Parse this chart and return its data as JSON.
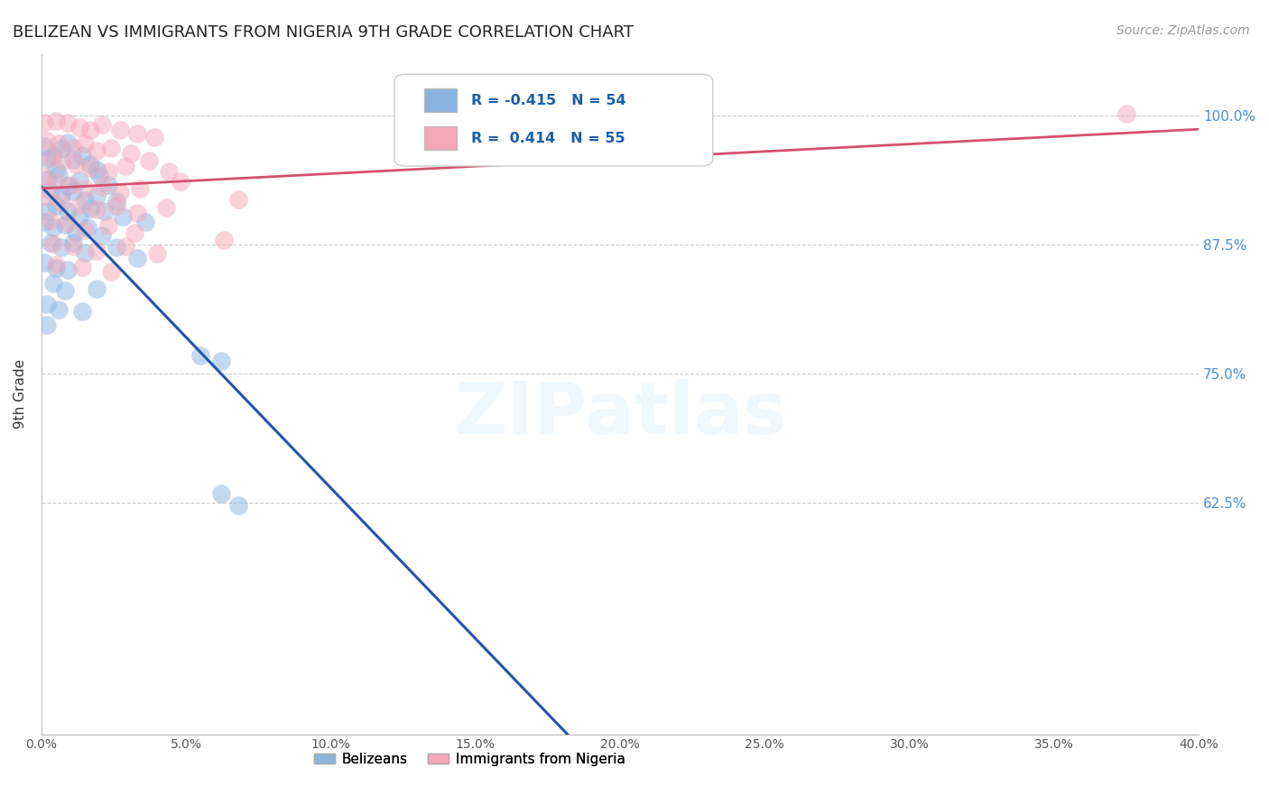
{
  "title": "BELIZEAN VS IMMIGRANTS FROM NIGERIA 9TH GRADE CORRELATION CHART",
  "source": "Source: ZipAtlas.com",
  "ylabel": "9th Grade",
  "ytick_labels": [
    "100.0%",
    "87.5%",
    "75.0%",
    "62.5%"
  ],
  "ytick_values": [
    1.0,
    0.875,
    0.75,
    0.625
  ],
  "xlim": [
    0.0,
    0.4
  ],
  "ylim": [
    0.4,
    1.06
  ],
  "blue_color": "#8ab4e0",
  "pink_color": "#f4a7b9",
  "blue_line_color": "#2255aa",
  "pink_line_color": "#d45070",
  "dashed_line_color": "#aac4dd",
  "watermark": "ZIPatlas",
  "belizean_points": [
    [
      0.001,
      0.97
    ],
    [
      0.004,
      0.962
    ],
    [
      0.007,
      0.968
    ],
    [
      0.009,
      0.974
    ],
    [
      0.002,
      0.958
    ],
    [
      0.005,
      0.948
    ],
    [
      0.011,
      0.957
    ],
    [
      0.014,
      0.962
    ],
    [
      0.017,
      0.953
    ],
    [
      0.019,
      0.948
    ],
    [
      0.002,
      0.938
    ],
    [
      0.006,
      0.943
    ],
    [
      0.009,
      0.932
    ],
    [
      0.013,
      0.937
    ],
    [
      0.02,
      0.942
    ],
    [
      0.023,
      0.933
    ],
    [
      0.003,
      0.927
    ],
    [
      0.007,
      0.923
    ],
    [
      0.011,
      0.927
    ],
    [
      0.015,
      0.918
    ],
    [
      0.019,
      0.922
    ],
    [
      0.026,
      0.917
    ],
    [
      0.002,
      0.907
    ],
    [
      0.005,
      0.913
    ],
    [
      0.009,
      0.907
    ],
    [
      0.013,
      0.902
    ],
    [
      0.017,
      0.91
    ],
    [
      0.022,
      0.907
    ],
    [
      0.028,
      0.902
    ],
    [
      0.036,
      0.897
    ],
    [
      0.001,
      0.897
    ],
    [
      0.004,
      0.892
    ],
    [
      0.008,
      0.894
    ],
    [
      0.012,
      0.887
    ],
    [
      0.016,
      0.892
    ],
    [
      0.021,
      0.884
    ],
    [
      0.003,
      0.877
    ],
    [
      0.007,
      0.872
    ],
    [
      0.011,
      0.877
    ],
    [
      0.015,
      0.867
    ],
    [
      0.026,
      0.872
    ],
    [
      0.033,
      0.862
    ],
    [
      0.001,
      0.857
    ],
    [
      0.005,
      0.852
    ],
    [
      0.009,
      0.85
    ],
    [
      0.004,
      0.837
    ],
    [
      0.008,
      0.83
    ],
    [
      0.019,
      0.832
    ],
    [
      0.002,
      0.817
    ],
    [
      0.006,
      0.812
    ],
    [
      0.014,
      0.81
    ],
    [
      0.002,
      0.797
    ],
    [
      0.055,
      0.767
    ],
    [
      0.062,
      0.762
    ],
    [
      0.062,
      0.633
    ],
    [
      0.068,
      0.622
    ]
  ],
  "nigeria_points": [
    [
      0.001,
      0.993
    ],
    [
      0.005,
      0.995
    ],
    [
      0.009,
      0.993
    ],
    [
      0.013,
      0.989
    ],
    [
      0.017,
      0.986
    ],
    [
      0.021,
      0.991
    ],
    [
      0.027,
      0.986
    ],
    [
      0.033,
      0.983
    ],
    [
      0.002,
      0.976
    ],
    [
      0.006,
      0.973
    ],
    [
      0.011,
      0.969
    ],
    [
      0.015,
      0.973
    ],
    [
      0.019,
      0.966
    ],
    [
      0.024,
      0.969
    ],
    [
      0.031,
      0.963
    ],
    [
      0.039,
      0.979
    ],
    [
      0.003,
      0.959
    ],
    [
      0.007,
      0.956
    ],
    [
      0.012,
      0.953
    ],
    [
      0.017,
      0.949
    ],
    [
      0.023,
      0.946
    ],
    [
      0.029,
      0.951
    ],
    [
      0.037,
      0.956
    ],
    [
      0.044,
      0.946
    ],
    [
      0.001,
      0.941
    ],
    [
      0.005,
      0.936
    ],
    [
      0.01,
      0.933
    ],
    [
      0.015,
      0.929
    ],
    [
      0.021,
      0.931
    ],
    [
      0.027,
      0.926
    ],
    [
      0.034,
      0.929
    ],
    [
      0.048,
      0.936
    ],
    [
      0.002,
      0.921
    ],
    [
      0.007,
      0.916
    ],
    [
      0.013,
      0.913
    ],
    [
      0.019,
      0.909
    ],
    [
      0.026,
      0.913
    ],
    [
      0.033,
      0.906
    ],
    [
      0.043,
      0.911
    ],
    [
      0.068,
      0.919
    ],
    [
      0.003,
      0.899
    ],
    [
      0.009,
      0.896
    ],
    [
      0.015,
      0.889
    ],
    [
      0.023,
      0.893
    ],
    [
      0.032,
      0.886
    ],
    [
      0.004,
      0.876
    ],
    [
      0.011,
      0.873
    ],
    [
      0.019,
      0.869
    ],
    [
      0.029,
      0.873
    ],
    [
      0.04,
      0.866
    ],
    [
      0.063,
      0.879
    ],
    [
      0.375,
      1.002
    ],
    [
      0.005,
      0.856
    ],
    [
      0.014,
      0.853
    ],
    [
      0.024,
      0.849
    ]
  ]
}
